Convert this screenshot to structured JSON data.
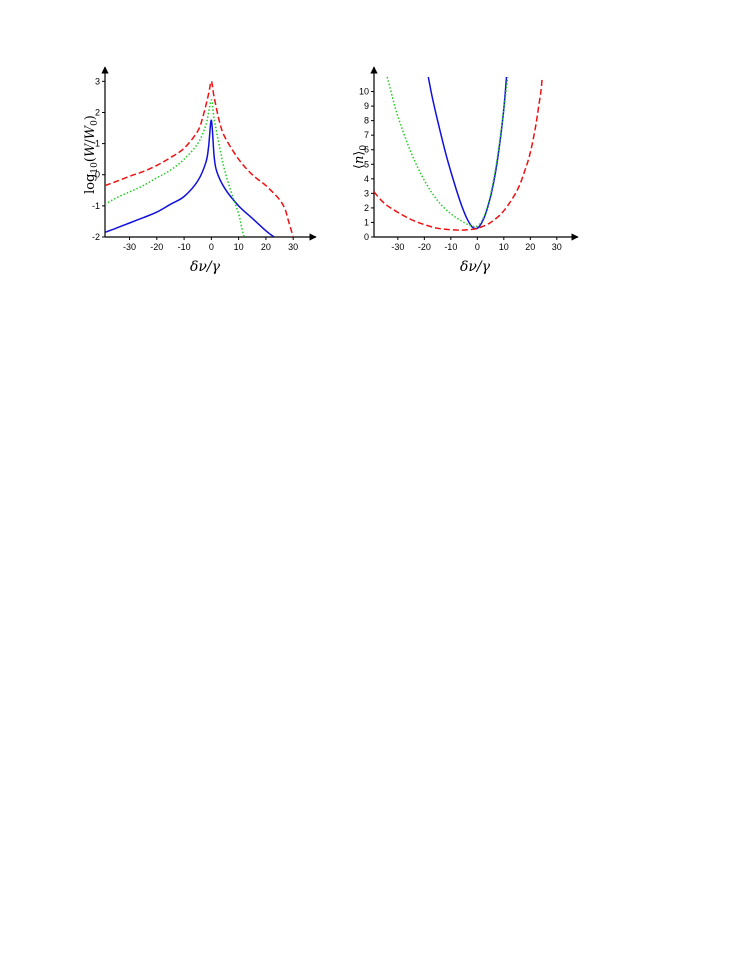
{
  "chart_data": [
    {
      "type": "line",
      "xlabel": "δν/γ",
      "ylabel": "log10(W/W0)",
      "xlim": [
        -39,
        38
      ],
      "ylim": [
        -2,
        3.3
      ],
      "xticks": [
        -30,
        -20,
        -10,
        0,
        10,
        20,
        30
      ],
      "yticks": [
        -2,
        -1,
        0,
        1,
        2,
        3
      ],
      "xtick_labels": [
        "-30",
        "-20",
        "-10",
        "0",
        "10",
        "20",
        "30"
      ],
      "ytick_labels": [
        "-2",
        "-1",
        "0",
        "1",
        "2",
        "3"
      ],
      "grid": false,
      "series": [
        {
          "color": "#1010dd",
          "dash": "solid",
          "x": [
            -39,
            -35,
            -30,
            -25,
            -20,
            -15,
            -10,
            -5,
            -2,
            -1,
            0,
            1,
            2,
            5,
            10,
            15,
            20,
            23
          ],
          "y": [
            -1.85,
            -1.72,
            -1.55,
            -1.38,
            -1.2,
            -0.95,
            -0.7,
            -0.2,
            0.4,
            0.9,
            1.75,
            0.6,
            0.1,
            -0.45,
            -1.0,
            -1.4,
            -1.8,
            -2.0
          ]
        },
        {
          "color": "#22cc22",
          "dash": "dotted",
          "x": [
            -39,
            -35,
            -30,
            -25,
            -20,
            -15,
            -10,
            -5,
            -2,
            0,
            1,
            3,
            5,
            8,
            10,
            11,
            12
          ],
          "y": [
            -0.95,
            -0.75,
            -0.55,
            -0.35,
            -0.1,
            0.15,
            0.5,
            1.0,
            1.6,
            2.4,
            1.8,
            0.9,
            0.1,
            -0.75,
            -1.25,
            -1.65,
            -2.0
          ]
        },
        {
          "color": "#ee1111",
          "dash": "dashed",
          "x": [
            -39,
            -35,
            -30,
            -25,
            -20,
            -15,
            -10,
            -5,
            -3,
            -1,
            0,
            1,
            3,
            5,
            10,
            15,
            20,
            25,
            27,
            28,
            29,
            30
          ],
          "y": [
            -0.35,
            -0.22,
            -0.05,
            0.1,
            0.3,
            0.55,
            0.85,
            1.4,
            1.9,
            2.6,
            3.0,
            2.5,
            1.7,
            1.2,
            0.5,
            0.0,
            -0.35,
            -0.8,
            -1.1,
            -1.4,
            -1.7,
            -2.0
          ]
        }
      ]
    },
    {
      "type": "line",
      "xlabel": "δν/γ",
      "ylabel": "⟨n⟩0",
      "xlim": [
        -39,
        38
      ],
      "ylim": [
        0,
        11
      ],
      "xticks": [
        -30,
        -20,
        -10,
        0,
        10,
        20,
        30
      ],
      "yticks": [
        0,
        1,
        2,
        3,
        4,
        5,
        6,
        7,
        8,
        9,
        10
      ],
      "xtick_labels": [
        "-30",
        "-20",
        "-10",
        "0",
        "10",
        "20",
        "30"
      ],
      "ytick_labels": [
        "0",
        "1",
        "2",
        "3",
        "4",
        "5",
        "6",
        "7",
        "8",
        "9",
        "10"
      ],
      "grid": false,
      "series": [
        {
          "color": "#1010dd",
          "dash": "solid",
          "x": [
            -18.5,
            -17,
            -15,
            -12,
            -10,
            -8,
            -6,
            -4,
            -2,
            0,
            2,
            4,
            6,
            8,
            10,
            11
          ],
          "y": [
            11,
            9.6,
            8.0,
            5.8,
            4.5,
            3.3,
            2.2,
            1.3,
            0.7,
            0.6,
            1.1,
            2.1,
            3.6,
            5.8,
            8.8,
            11
          ]
        },
        {
          "color": "#22cc22",
          "dash": "dotted",
          "x": [
            -34,
            -32,
            -30,
            -25,
            -20,
            -15,
            -10,
            -5,
            -2,
            0,
            2,
            4,
            6,
            8,
            10,
            11.5
          ],
          "y": [
            11,
            9.6,
            8.3,
            5.8,
            3.9,
            2.5,
            1.6,
            1.0,
            0.75,
            0.75,
            1.2,
            2.2,
            3.8,
            6.0,
            8.8,
            11
          ]
        },
        {
          "color": "#ee1111",
          "dash": "dashed",
          "x": [
            -39,
            -35,
            -30,
            -25,
            -20,
            -15,
            -10,
            -5,
            0,
            5,
            10,
            15,
            18,
            20,
            22,
            23,
            24,
            24.5
          ],
          "y": [
            3.1,
            2.3,
            1.7,
            1.2,
            0.85,
            0.6,
            0.5,
            0.48,
            0.6,
            1.0,
            1.8,
            3.2,
            4.6,
            5.8,
            7.6,
            8.8,
            10.0,
            11.0
          ]
        }
      ]
    }
  ]
}
